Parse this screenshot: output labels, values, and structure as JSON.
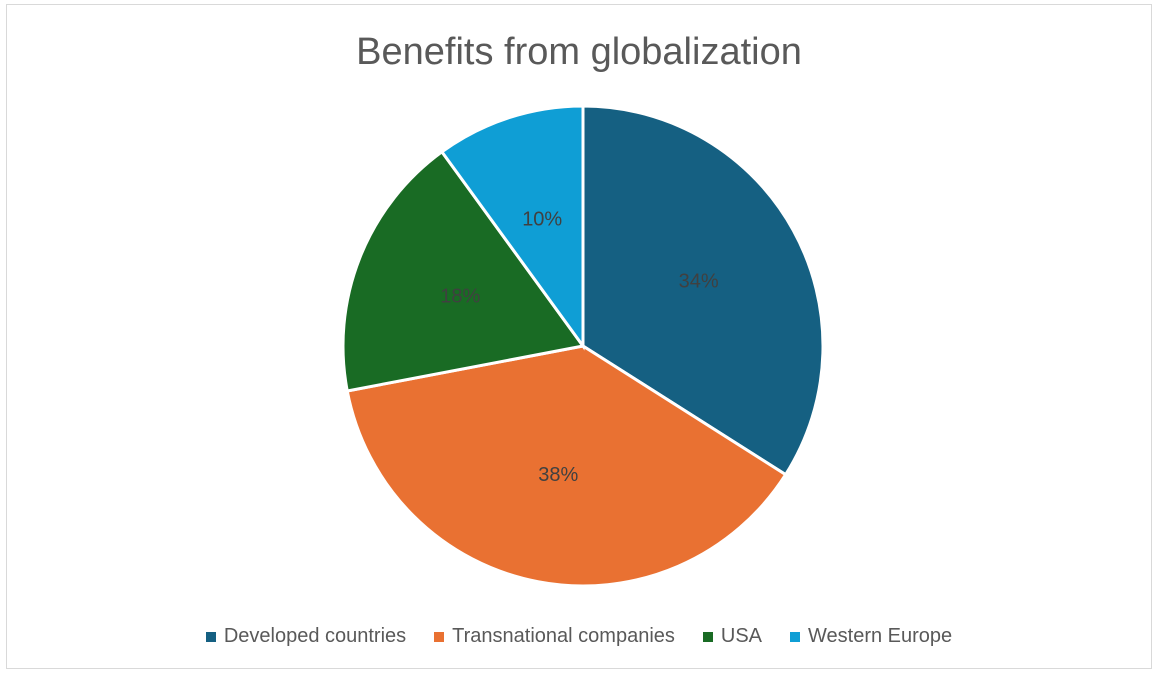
{
  "chart_data": {
    "type": "pie",
    "title": "Benefits from globalization",
    "categories": [
      "Developed countries",
      "Transnational companies",
      "USA",
      "Western Europe"
    ],
    "values": [
      34,
      38,
      18,
      10
    ],
    "labels": [
      "34%",
      "38%",
      "18%",
      "10%"
    ],
    "colors": [
      "#156082",
      "#E97132",
      "#196B24",
      "#0F9ED5"
    ],
    "legend_position": "bottom"
  }
}
